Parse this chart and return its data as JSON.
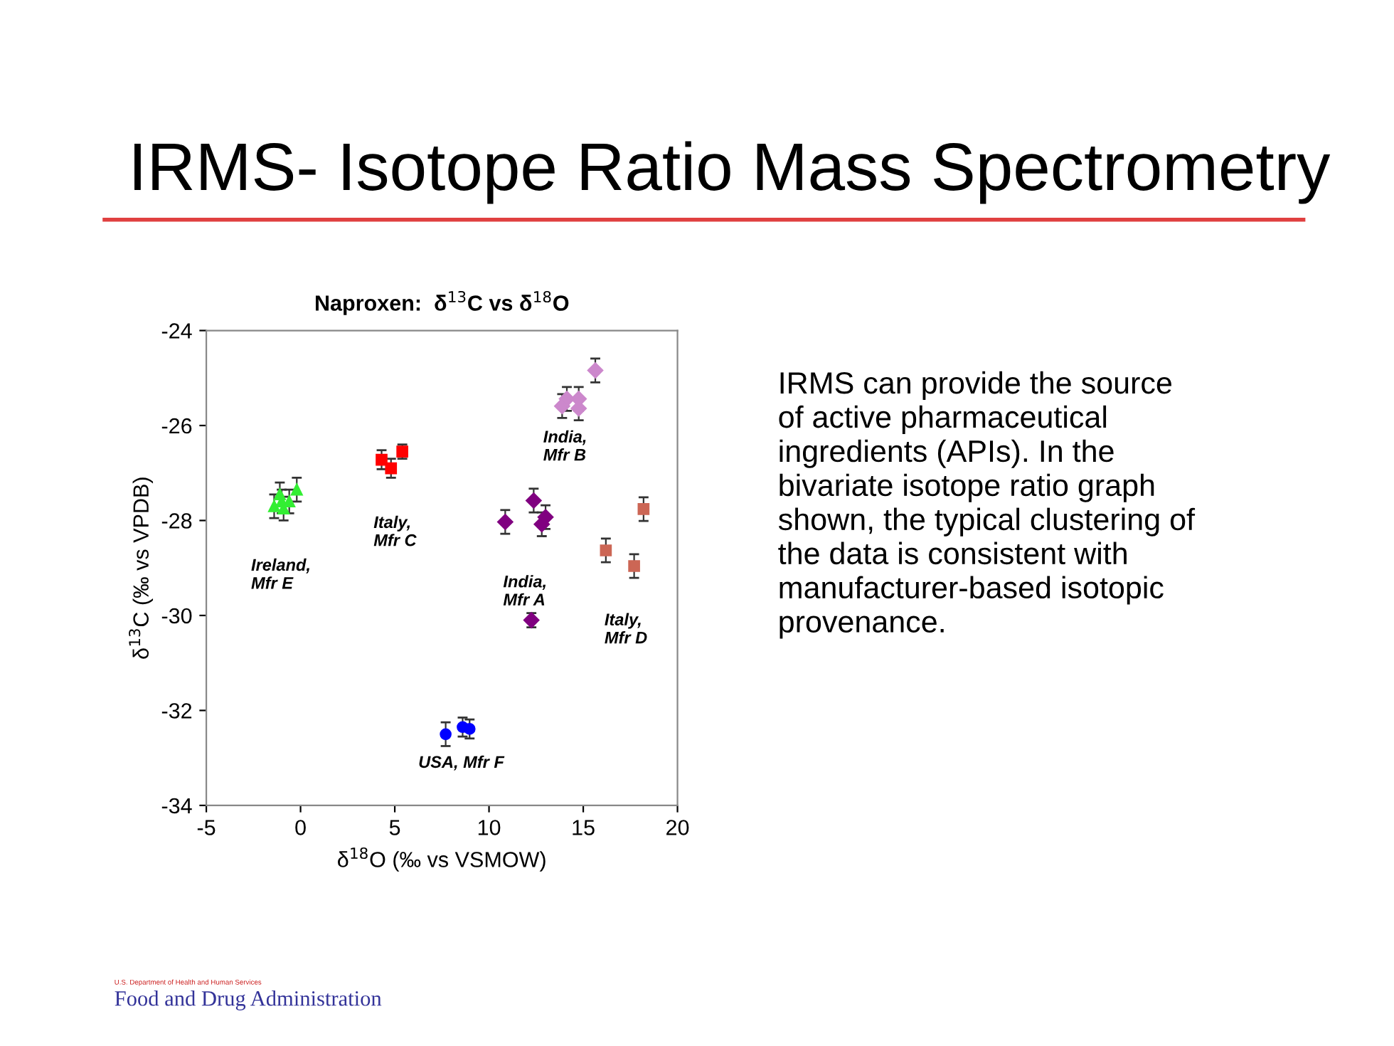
{
  "chart_data": {
    "type": "scatter",
    "title": "IRMS- Isotope Ratio Mass Spectrometry",
    "subtitle": "Naproxen:  δ$^{13}$C vs δ$^{18}$O",
    "xlabel": "δ$^{18}$O (‰ vs VSMOW)",
    "ylabel": "δ$^{13}$C (‰ vs VPDB)",
    "xlim": [
      -5,
      20
    ],
    "xticks": [
      -5,
      0,
      5,
      10,
      15,
      20
    ],
    "ylim": [
      -34,
      -24
    ],
    "yticks": [
      -34,
      -32,
      -30,
      -28,
      -26,
      -24
    ],
    "grid": false,
    "series": [
      {
        "color": "#33ee33",
        "marker": "triangle",
        "x": [
          -1.1,
          -0.2,
          -1.4,
          -0.9,
          -0.6,
          -1.0
        ],
        "values": [
          -27.45,
          -27.35,
          -27.7,
          -27.75,
          -27.6,
          -27.6
        ],
        "errors": [
          0.25,
          0.25,
          0.25,
          0.25,
          0.25,
          0.25
        ]
      },
      {
        "color": "#ff0000",
        "marker": "square",
        "x": [
          4.3,
          4.8,
          5.4
        ],
        "values": [
          -26.72,
          -26.9,
          -26.55
        ],
        "errors": [
          0.2,
          0.2,
          0.15
        ]
      },
      {
        "color": "#0000ff",
        "marker": "circle",
        "x": [
          7.7,
          8.6,
          8.97
        ],
        "values": [
          -32.5,
          -32.35,
          -32.39
        ],
        "errors": [
          0.25,
          0.2,
          0.2
        ]
      },
      {
        "color": "#800080",
        "marker": "diamond",
        "x": [
          10.86,
          12.37,
          13.0,
          12.8,
          12.25
        ],
        "values": [
          -28.03,
          -27.58,
          -27.93,
          -28.08,
          -30.1
        ],
        "errors": [
          0.25,
          0.25,
          0.25,
          0.25,
          0.15
        ]
      },
      {
        "color": "#cc88cc",
        "marker": "diamond",
        "x": [
          13.88,
          14.13,
          14.76,
          14.76,
          15.64
        ],
        "values": [
          -25.59,
          -25.44,
          -25.44,
          -25.64,
          -24.84
        ],
        "errors": [
          0.25,
          0.25,
          0.25,
          0.25,
          0.25
        ]
      },
      {
        "color": "#cc6655",
        "marker": "square",
        "x": [
          18.2,
          16.2,
          17.7
        ],
        "values": [
          -27.76,
          -28.63,
          -28.96
        ],
        "errors": [
          0.25,
          0.25,
          0.25
        ]
      }
    ],
    "annotations": [
      "Ireland,\nMfr E",
      "Italy,\nMfr C",
      "India,\nMfr B",
      "India,\nMfr A",
      "Italy,\nMfr D",
      "USA, Mfr F",
      "IRMS can provide the source\nof active pharmaceutical\ningredients (APIs). In the\nbivariate isotope ratio graph\nshown, the typical clustering of\nthe data is consistent with\nmanufacturer-based isotopic\nprovenance.",
      "U.S. Department of Health and Human Services",
      "Food and Drug Administration"
    ]
  }
}
